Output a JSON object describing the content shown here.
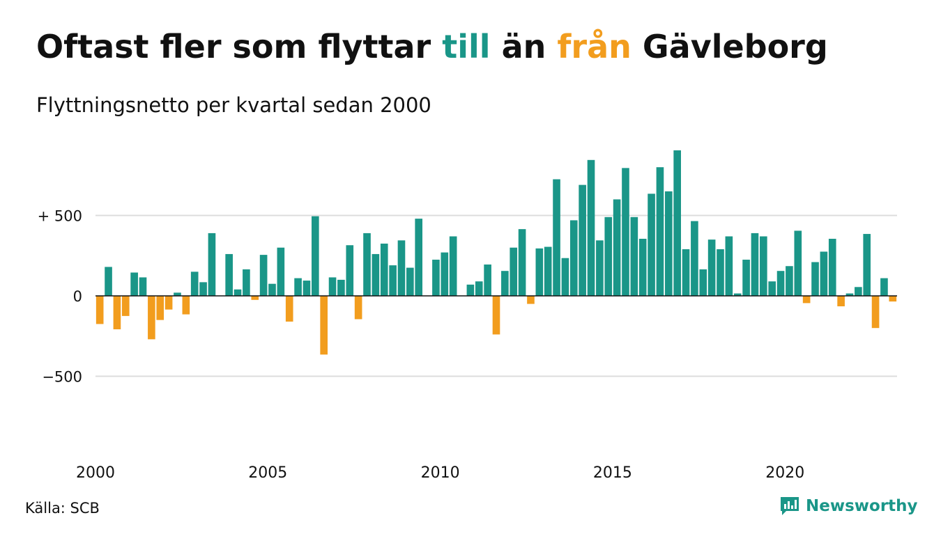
{
  "header": {
    "title_part1": "Oftast fler som flyttar ",
    "title_till": "till",
    "title_part2": " än ",
    "title_fran": "från",
    "title_part3": " Gävleborg",
    "subtitle": "Flyttningsnetto per kvartal sedan 2000"
  },
  "colors": {
    "positive": "#1a9688",
    "negative": "#f29d1e",
    "gridline": "#dcdcdc",
    "text": "#111111"
  },
  "footer": {
    "source": "Källa: SCB",
    "brand": "Newsworthy",
    "brand_icon": "bar-chart-logo-icon"
  },
  "chart_data": {
    "type": "bar",
    "title": "Oftast fler som flyttar till än från Gävleborg",
    "subtitle": "Flyttningsnetto per kvartal sedan 2000",
    "xlabel": "",
    "ylabel": "",
    "ylim": [
      -870,
      920
    ],
    "yticks": [
      {
        "value": 500,
        "label": "+ 500"
      },
      {
        "value": 0,
        "label": "0"
      },
      {
        "value": -500,
        "label": "−500"
      }
    ],
    "xticks": [
      {
        "value": 2000,
        "label": "2000"
      },
      {
        "value": 2005,
        "label": "2005"
      },
      {
        "value": 2010,
        "label": "2010"
      },
      {
        "value": 2015,
        "label": "2015"
      },
      {
        "value": 2020,
        "label": "2020"
      }
    ],
    "grid": true,
    "legend": "none",
    "start_year": 2000,
    "periods_per_year": 4,
    "values": [
      -175,
      180,
      -208,
      -125,
      145,
      115,
      -270,
      -150,
      -85,
      20,
      -115,
      150,
      85,
      390,
      0,
      260,
      40,
      165,
      -25,
      255,
      75,
      300,
      -160,
      110,
      95,
      495,
      -365,
      115,
      100,
      315,
      -145,
      390,
      260,
      325,
      190,
      345,
      175,
      480,
      0,
      225,
      270,
      370,
      0,
      70,
      90,
      195,
      -240,
      155,
      300,
      415,
      -50,
      295,
      305,
      725,
      235,
      470,
      690,
      845,
      345,
      490,
      600,
      795,
      490,
      355,
      635,
      800,
      650,
      905,
      290,
      465,
      165,
      350,
      290,
      370,
      15,
      225,
      390,
      370,
      90,
      155,
      185,
      405,
      -45,
      210,
      275,
      355,
      -65,
      15,
      55,
      385,
      -200,
      110,
      -35
    ]
  }
}
